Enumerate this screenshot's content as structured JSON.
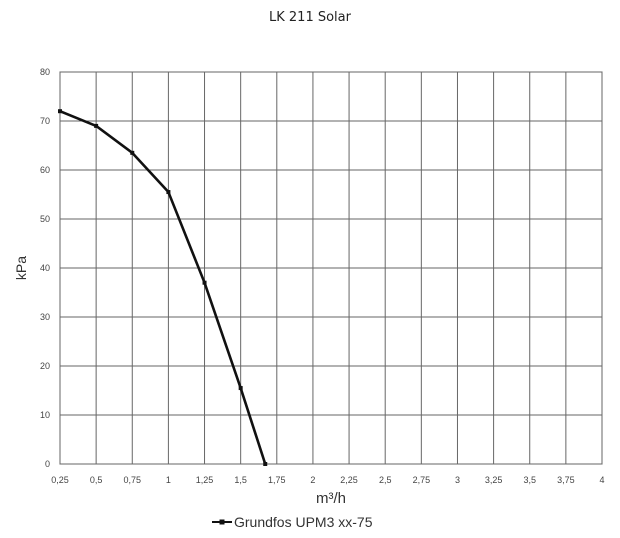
{
  "page": {
    "title": "LK 211 Solar"
  },
  "chart_data": {
    "type": "line",
    "title": "LK 211 Solar",
    "xlabel": "m³/h",
    "ylabel": "kPa",
    "xlim": [
      0.25,
      4
    ],
    "ylim": [
      0,
      80
    ],
    "x_ticks": [
      "0,25",
      "0,5",
      "0,75",
      "1",
      "1,25",
      "1,5",
      "1,75",
      "2",
      "2,25",
      "2,5",
      "2,75",
      "3",
      "3,25",
      "3,5",
      "3,75",
      "4"
    ],
    "y_ticks": [
      "0",
      "10",
      "20",
      "30",
      "40",
      "50",
      "60",
      "70",
      "80"
    ],
    "grid": true,
    "legend": "bottom",
    "series": [
      {
        "name": "Grundfos UPM3 xx-75",
        "color": "#111111",
        "x": [
          0.25,
          0.5,
          0.75,
          1.0,
          1.25,
          1.5,
          1.67
        ],
        "y": [
          72,
          69,
          63.5,
          55.5,
          37,
          15.5,
          0
        ]
      }
    ]
  }
}
